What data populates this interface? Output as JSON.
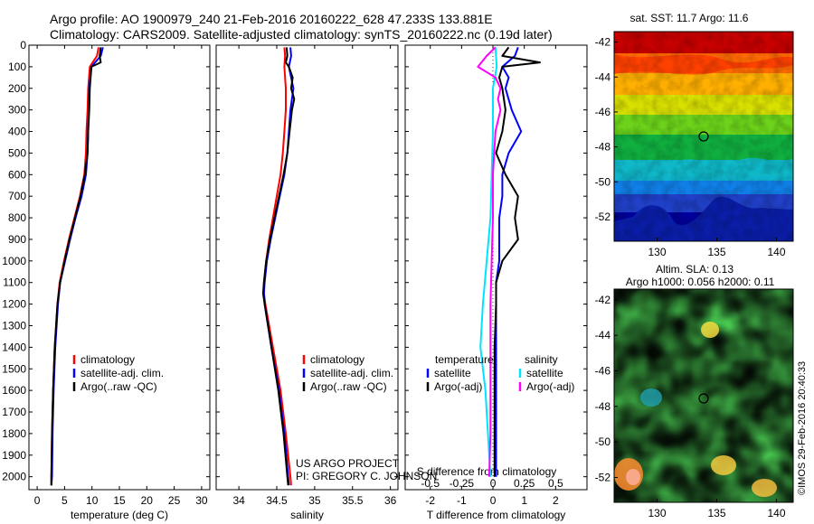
{
  "header": {
    "line1": "Argo profile: AO 1900979_240 21-Feb-2016 20160222_628 47.233S 133.881E",
    "line2": "Climatology: CARS2009. Satellite-adjusted climatology: synTS_20160222.nc (0.19d later)"
  },
  "colors": {
    "climatology": "#ff0000",
    "satellite": "#0000ff",
    "argo": "#000000",
    "sat_salinity": "#00e5ff",
    "argo_salinity_diff": "#ff00ff"
  },
  "chart_data": [
    {
      "type": "line",
      "name": "temperature-profile",
      "xlabel": "temperature (deg C)",
      "xlim": [
        -1.5,
        31.5
      ],
      "ylim": [
        2060,
        0
      ],
      "xticks": [
        0,
        5,
        10,
        15,
        20,
        25,
        30
      ],
      "yticks": [
        0,
        100,
        200,
        300,
        400,
        500,
        600,
        700,
        800,
        900,
        1000,
        1100,
        1200,
        1300,
        1400,
        1500,
        1600,
        1700,
        1800,
        1900,
        2000
      ],
      "legend_items": [
        "climatology",
        "satellite-adj. clim.",
        "Argo(..raw -QC)"
      ],
      "series": [
        {
          "name": "climatology",
          "color": "#ff0000",
          "depth": [
            10,
            50,
            100,
            200,
            300,
            400,
            500,
            600,
            700,
            800,
            900,
            1000,
            1100,
            1200,
            1400,
            1600,
            1800,
            2000,
            2040
          ],
          "values": [
            11.2,
            10.9,
            9.6,
            9.3,
            9.2,
            9.0,
            8.9,
            8.6,
            7.8,
            6.8,
            5.8,
            4.9,
            4.1,
            3.7,
            3.2,
            2.9,
            2.7,
            2.6,
            2.6
          ]
        },
        {
          "name": "satellite-adj. clim.",
          "color": "#0000ff",
          "depth": [
            10,
            50,
            100,
            200,
            300,
            400,
            500,
            600,
            700,
            800,
            900,
            1000,
            1100,
            1200,
            1400,
            1600,
            1800,
            2000,
            2040
          ],
          "values": [
            12.0,
            11.6,
            9.9,
            9.5,
            9.4,
            9.3,
            9.2,
            8.9,
            8.1,
            7.0,
            6.0,
            5.1,
            4.2,
            3.8,
            3.3,
            3.0,
            2.8,
            2.7,
            2.6
          ]
        },
        {
          "name": "Argo(..raw -QC)",
          "color": "#000000",
          "depth": [
            10,
            50,
            80,
            100,
            200,
            300,
            400,
            500,
            600,
            700,
            800,
            900,
            1000,
            1100,
            1200,
            1400,
            1600,
            1800,
            2000,
            2040
          ],
          "values": [
            11.6,
            11.4,
            11.6,
            9.9,
            9.6,
            9.5,
            9.3,
            9.2,
            8.7,
            7.9,
            6.9,
            5.9,
            5.0,
            4.2,
            3.7,
            3.2,
            2.9,
            2.7,
            2.6,
            2.6
          ]
        }
      ]
    },
    {
      "type": "line",
      "name": "salinity-profile",
      "xlabel": "salinity",
      "xlim": [
        33.7,
        36.1
      ],
      "ylim": [
        2060,
        0
      ],
      "xticks": [
        34,
        34.5,
        35,
        35.5,
        36
      ],
      "legend_items": [
        "climatology",
        "satellite-adj. clim.",
        "Argo(..raw -QC)"
      ],
      "series": [
        {
          "name": "climatology",
          "color": "#ff0000",
          "depth": [
            10,
            50,
            100,
            200,
            300,
            400,
            500,
            600,
            700,
            800,
            900,
            1000,
            1100,
            1150,
            1200,
            1400,
            1600,
            1800,
            2000,
            2040
          ],
          "values": [
            34.6,
            34.61,
            34.6,
            34.62,
            34.62,
            34.6,
            34.58,
            34.55,
            34.5,
            34.45,
            34.4,
            34.36,
            34.33,
            34.33,
            34.35,
            34.45,
            34.55,
            34.62,
            34.68,
            34.69
          ]
        },
        {
          "name": "satellite-adj. clim.",
          "color": "#0000ff",
          "depth": [
            10,
            50,
            100,
            200,
            300,
            400,
            500,
            600,
            700,
            800,
            900,
            1000,
            1100,
            1150,
            1200,
            1400,
            1600,
            1800,
            2000,
            2040
          ],
          "values": [
            34.68,
            34.69,
            34.66,
            34.72,
            34.68,
            34.66,
            34.64,
            34.6,
            34.54,
            34.48,
            34.42,
            34.37,
            34.34,
            34.33,
            34.34,
            34.43,
            34.53,
            34.6,
            34.65,
            34.66
          ]
        },
        {
          "name": "Argo(..raw -QC)",
          "color": "#000000",
          "depth": [
            10,
            50,
            80,
            100,
            150,
            200,
            250,
            300,
            400,
            500,
            600,
            700,
            800,
            900,
            1000,
            1100,
            1150,
            1200,
            1400,
            1600,
            1800,
            2000,
            2040
          ],
          "values": [
            34.63,
            34.64,
            34.62,
            34.66,
            34.71,
            34.69,
            34.73,
            34.7,
            34.67,
            34.64,
            34.59,
            34.53,
            34.47,
            34.41,
            34.36,
            34.33,
            34.32,
            34.34,
            34.43,
            34.52,
            34.59,
            34.64,
            34.65
          ]
        }
      ]
    },
    {
      "type": "line",
      "name": "difference-profile",
      "xlabel": "T difference from climatology",
      "xlabel_top": "S difference from climatology",
      "xlim": [
        -2.8,
        3.0
      ],
      "ylim": [
        2060,
        0
      ],
      "xticks": [
        -2,
        -1,
        0,
        1,
        2
      ],
      "xticks_top": [
        "-0.5",
        "-0.25",
        "0",
        "0.25",
        "0.5"
      ],
      "legend_temperature": {
        "title": "temperature",
        "items": [
          "satellite",
          "Argo(-adj)"
        ]
      },
      "legend_salinity": {
        "title": "salinity",
        "items": [
          "satellite",
          "Argo(-adj)"
        ]
      },
      "series": [
        {
          "name": "temperature satellite",
          "color": "#0000ff",
          "depth": [
            10,
            50,
            100,
            150,
            200,
            300,
            400,
            500,
            600,
            700,
            800,
            900,
            1000,
            1100,
            1200,
            1400,
            1600,
            1800,
            2000
          ],
          "values": [
            0.8,
            0.7,
            0.3,
            0.5,
            0.4,
            0.6,
            0.9,
            0.5,
            0.3,
            0.3,
            0.2,
            0.2,
            0.2,
            0.1,
            0.1,
            0.1,
            0.1,
            0.1,
            0.1
          ]
        },
        {
          "name": "temperature Argo(-adj)",
          "color": "#000000",
          "depth": [
            10,
            50,
            80,
            100,
            150,
            200,
            300,
            400,
            500,
            600,
            700,
            800,
            900,
            1000,
            1100,
            1200,
            1400,
            1600,
            1800,
            2000
          ],
          "values": [
            0.5,
            0.3,
            1.5,
            0.3,
            0.2,
            0.3,
            0.4,
            0.3,
            0.1,
            0.4,
            0.8,
            0.7,
            0.8,
            0.3,
            0.1,
            0.1,
            0.05,
            0.05,
            0.05,
            0.05
          ]
        },
        {
          "name": "salinity satellite",
          "color": "#00e5ff",
          "depth": [
            10,
            100,
            200,
            400,
            600,
            800,
            1000,
            1200,
            1400,
            1600,
            1800,
            2000
          ],
          "values": [
            0.02,
            0.03,
            0.0,
            0.0,
            -0.01,
            -0.02,
            -0.05,
            -0.08,
            -0.1,
            -0.06,
            -0.04,
            -0.02
          ]
        },
        {
          "name": "salinity Argo(-adj)",
          "color": "#ff00ff",
          "depth": [
            10,
            50,
            100,
            150,
            200,
            250,
            300,
            400,
            600,
            800,
            1000,
            1200,
            1400,
            1600,
            1800,
            2000
          ],
          "values": [
            0.02,
            -0.05,
            -0.12,
            0.02,
            0.06,
            0.04,
            0.06,
            0.02,
            0.0,
            0.0,
            -0.01,
            -0.02,
            -0.02,
            -0.02,
            -0.02,
            -0.03
          ]
        }
      ]
    },
    {
      "type": "heatmap",
      "name": "sst-map",
      "title": "sat. SST: 11.7 Argo: 11.6",
      "xlim": [
        126.4,
        141.4
      ],
      "ylim": [
        -53.4,
        -41.4
      ],
      "xticks": [
        130,
        135,
        140
      ],
      "yticks": [
        -42,
        -44,
        -46,
        -48,
        -50,
        -52
      ],
      "profile_location": [
        133.881,
        -47.233
      ]
    },
    {
      "type": "heatmap",
      "name": "sla-map",
      "title_line1": "Altim. SLA: 0.13",
      "title_line2": "Argo h1000: 0.056 h2000: 0.11",
      "xlim": [
        126.4,
        141.4
      ],
      "ylim": [
        -53.4,
        -41.4
      ],
      "xticks": [
        130,
        135,
        140
      ],
      "yticks": [
        -42,
        -44,
        -46,
        -48,
        -50,
        -52
      ],
      "profile_location": [
        133.881,
        -47.233
      ]
    }
  ],
  "credits": {
    "project": "US ARGO PROJECT",
    "pi": "PI: GREGORY C. JOHNSON",
    "stamp": "©IMOS 29-Feb-2016 20:40:33"
  }
}
